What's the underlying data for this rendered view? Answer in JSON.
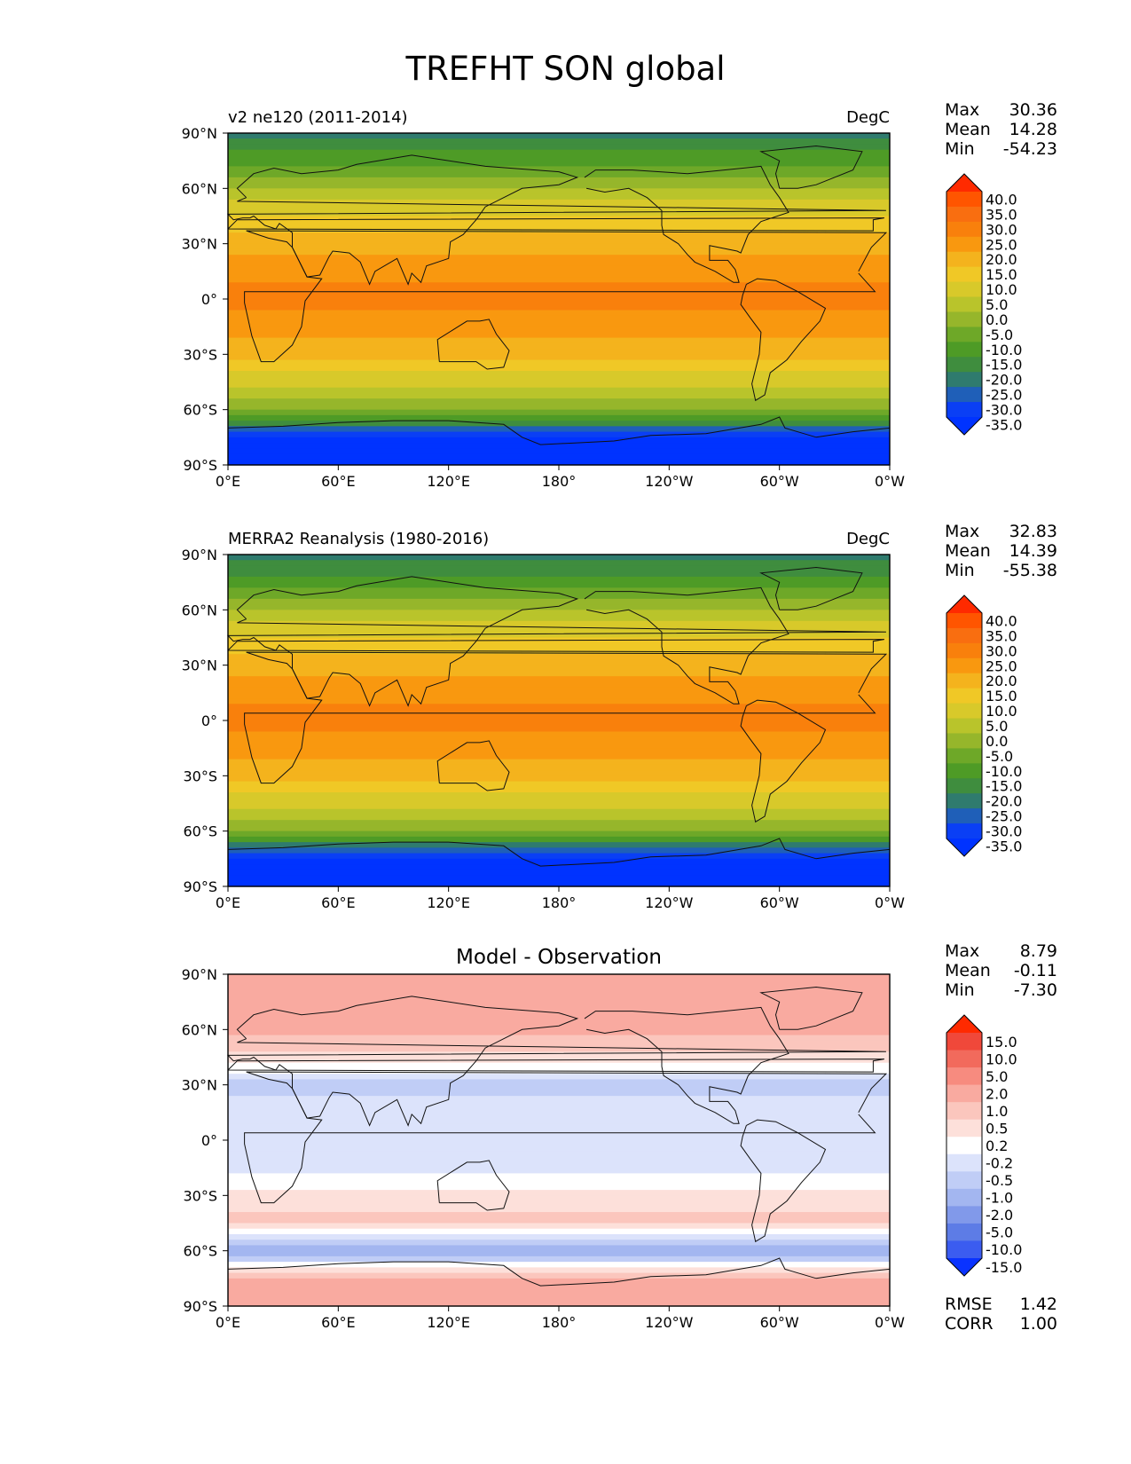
{
  "title": "TREFHT SON global",
  "lat_ticks": [
    "90°N",
    "60°N",
    "30°N",
    "0°",
    "30°S",
    "60°S",
    "90°S"
  ],
  "lon_ticks": [
    "0°E",
    "60°E",
    "120°E",
    "180°",
    "120°W",
    "60°W",
    "0°W"
  ],
  "panels": [
    {
      "left_title": "v2 ne120 (2011-2014)",
      "center_title": "",
      "right_title": "DegC",
      "stats": {
        "labels": [
          "Max",
          "Mean",
          "Min"
        ],
        "values": [
          "30.36",
          "14.28",
          "-54.23"
        ]
      },
      "colorbar": {
        "labels": [
          "40.0",
          "35.0",
          "30.0",
          "25.0",
          "20.0",
          "15.0",
          "10.0",
          "5.0",
          "0.0",
          "-5.0",
          "-10.0",
          "-15.0",
          "-20.0",
          "-25.0",
          "-30.0",
          "-35.0"
        ],
        "colors": [
          "#ff2a00",
          "#ff5500",
          "#f96e10",
          "#f9800c",
          "#f9980f",
          "#f4b31d",
          "#f0c826",
          "#d8c92a",
          "#b9c42b",
          "#96b62b",
          "#6ea828",
          "#4e9b26",
          "#3f8d3e",
          "#2f7b6e",
          "#1f5fb8",
          "#0a3ff5",
          "#0033ff"
        ]
      },
      "extra_stats": null
    },
    {
      "left_title": "MERRA2 Reanalysis (1980-2016)",
      "center_title": "",
      "right_title": "DegC",
      "stats": {
        "labels": [
          "Max",
          "Mean",
          "Min"
        ],
        "values": [
          "32.83",
          "14.39",
          "-55.38"
        ]
      },
      "colorbar": {
        "labels": [
          "40.0",
          "35.0",
          "30.0",
          "25.0",
          "20.0",
          "15.0",
          "10.0",
          "5.0",
          "0.0",
          "-5.0",
          "-10.0",
          "-15.0",
          "-20.0",
          "-25.0",
          "-30.0",
          "-35.0"
        ],
        "colors": [
          "#ff2a00",
          "#ff5500",
          "#f96e10",
          "#f9800c",
          "#f9980f",
          "#f4b31d",
          "#f0c826",
          "#d8c92a",
          "#b9c42b",
          "#96b62b",
          "#6ea828",
          "#4e9b26",
          "#3f8d3e",
          "#2f7b6e",
          "#1f5fb8",
          "#0a3ff5",
          "#0033ff"
        ]
      },
      "extra_stats": null
    },
    {
      "left_title": "",
      "center_title": "Model - Observation",
      "right_title": "",
      "stats": {
        "labels": [
          "Max",
          "Mean",
          "Min"
        ],
        "values": [
          "8.79",
          "-0.11",
          "-7.30"
        ]
      },
      "colorbar": {
        "labels": [
          "15.0",
          "10.0",
          "5.0",
          "2.0",
          "1.0",
          "0.5",
          "0.2",
          "-0.2",
          "-0.5",
          "-1.0",
          "-2.0",
          "-5.0",
          "-10.0",
          "-15.0"
        ],
        "colors": [
          "#ff2a00",
          "#f0483a",
          "#f26a5c",
          "#f78b7f",
          "#f9aaa0",
          "#fbc6bd",
          "#fde0da",
          "#ffffff",
          "#dce3fb",
          "#c0cdf6",
          "#a3b6f0",
          "#8199ea",
          "#5d7ce6",
          "#3b5cf0",
          "#0a33ff"
        ]
      },
      "extra_stats": {
        "labels": [
          "RMSE",
          "CORR"
        ],
        "values": [
          "1.42",
          "1.00"
        ]
      }
    }
  ],
  "chart_data": [
    {
      "type": "heatmap",
      "title": "v2 ne120 (2011-2014)",
      "units": "DegC",
      "xlim": [
        0,
        360
      ],
      "ylim": [
        -90,
        90
      ],
      "xlabel": "",
      "ylabel": "",
      "levels": [
        -35,
        -30,
        -25,
        -20,
        -15,
        -10,
        -5,
        0,
        5,
        10,
        15,
        20,
        25,
        30,
        35,
        40
      ],
      "zonal_profile": {
        "lat": [
          -90,
          -75,
          -60,
          -45,
          -30,
          -15,
          0,
          15,
          30,
          45,
          60,
          75,
          90
        ],
        "value": [
          -45,
          -35,
          -5,
          7,
          16,
          23,
          26,
          24,
          18,
          10,
          0,
          -12,
          -22
        ]
      },
      "max": 30.36,
      "mean": 14.28,
      "min": -54.23
    },
    {
      "type": "heatmap",
      "title": "MERRA2 Reanalysis (1980-2016)",
      "units": "DegC",
      "xlim": [
        0,
        360
      ],
      "ylim": [
        -90,
        90
      ],
      "xlabel": "",
      "ylabel": "",
      "levels": [
        -35,
        -30,
        -25,
        -20,
        -15,
        -10,
        -5,
        0,
        5,
        10,
        15,
        20,
        25,
        30,
        35,
        40
      ],
      "zonal_profile": {
        "lat": [
          -90,
          -75,
          -60,
          -45,
          -30,
          -15,
          0,
          15,
          30,
          45,
          60,
          75,
          90
        ],
        "value": [
          -46,
          -36,
          -5,
          7,
          16,
          23,
          26,
          24,
          18,
          10,
          0,
          -13,
          -23
        ]
      },
      "max": 32.83,
      "mean": 14.39,
      "min": -55.38
    },
    {
      "type": "heatmap",
      "title": "Model - Observation",
      "units": "",
      "xlim": [
        0,
        360
      ],
      "ylim": [
        -90,
        90
      ],
      "xlabel": "",
      "ylabel": "",
      "levels": [
        -15,
        -10,
        -5,
        -2,
        -1,
        -0.5,
        -0.2,
        0.2,
        0.5,
        1,
        2,
        5,
        10,
        15
      ],
      "zonal_profile": {
        "lat": [
          -90,
          -75,
          -60,
          -45,
          -30,
          -15,
          0,
          15,
          30,
          45,
          60,
          75,
          90
        ],
        "value": [
          1.5,
          1.2,
          -1.5,
          0.6,
          0.3,
          -0.4,
          -0.3,
          -0.4,
          -0.6,
          0.3,
          1.2,
          2.0,
          1.5
        ]
      },
      "max": 8.79,
      "mean": -0.11,
      "min": -7.3,
      "rmse": 1.42,
      "corr": 1.0
    }
  ]
}
